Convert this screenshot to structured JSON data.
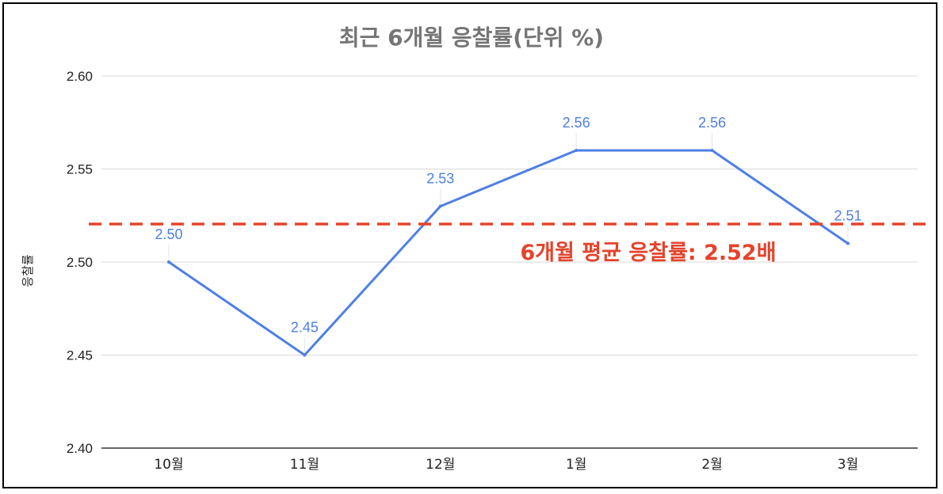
{
  "chart_data": {
    "type": "line",
    "title": "최근 6개월 응찰률(단위 %)",
    "xlabel": "",
    "ylabel": "응찰률",
    "categories": [
      "10월",
      "11월",
      "12월",
      "1월",
      "2월",
      "3월"
    ],
    "values": [
      2.5,
      2.45,
      2.53,
      2.56,
      2.56,
      2.51
    ],
    "data_labels": [
      "2.50",
      "2.45",
      "2.53",
      "2.56",
      "2.56",
      "2.51"
    ],
    "ylim": [
      2.4,
      2.6
    ],
    "yticks": [
      2.4,
      2.45,
      2.5,
      2.55,
      2.6
    ],
    "ytick_labels": [
      "2.40",
      "2.45",
      "2.50",
      "2.55",
      "2.60"
    ],
    "grid": true,
    "reference_line": {
      "value": 2.52,
      "label": "6개월 평균 응찰률: 2.52배",
      "style": "dashed"
    },
    "colors": {
      "line": "#4e7fe4",
      "reference": "#e5432b",
      "grid": "#d9d9d9",
      "title": "#757575"
    }
  }
}
